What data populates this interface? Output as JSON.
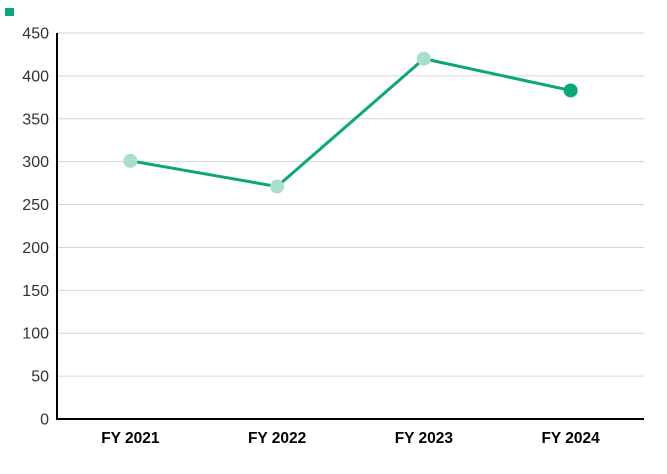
{
  "window": {
    "background": "#ffffff"
  },
  "series_chip": {
    "color": "#0DA57C"
  },
  "chart_data": {
    "type": "line",
    "title": "",
    "xlabel": "",
    "ylabel": "",
    "categories": [
      "FY 2021",
      "FY 2022",
      "FY 2023",
      "FY 2024"
    ],
    "series": [
      {
        "name": "Series 1",
        "values": [
          301,
          271,
          420,
          383
        ]
      }
    ],
    "ylim": [
      0,
      450
    ],
    "yticks": [
      0,
      50,
      100,
      150,
      200,
      250,
      300,
      350,
      400,
      450
    ],
    "grid": true,
    "legend_position": "none",
    "marker_emphasis_index": 3,
    "colors": {
      "line": "#0DA57C",
      "marker": "#AADEC9",
      "marker_emphasis": "#0DA57C",
      "gridline": "#D6D6D6",
      "axis": "#000000",
      "y_tick_label": "#333333",
      "x_tick_label": "#000000"
    }
  }
}
